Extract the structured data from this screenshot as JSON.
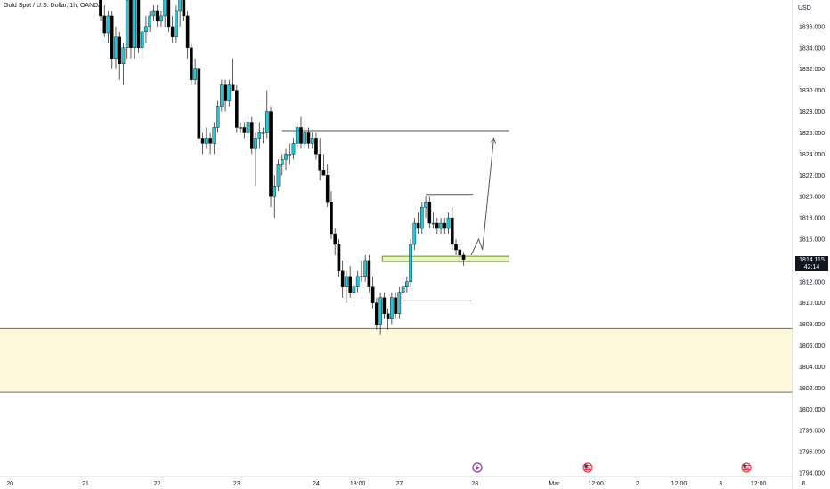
{
  "header": {
    "symbol": "Gold Spot / U.S. Dollar, 1h, OANDA"
  },
  "price_axis": {
    "currency": "USD",
    "last_price": "1814.115",
    "countdown": "42:14",
    "labels": [
      "1836.000",
      "1834.000",
      "1832.000",
      "1830.000",
      "1828.000",
      "1826.000",
      "1824.000",
      "1822.000",
      "1820.000",
      "1818.000",
      "1816.000",
      "1812.000",
      "1810.000",
      "1808.000",
      "1806.000",
      "1804.000",
      "1802.000",
      "1800.000",
      "1798.000",
      "1796.000",
      "1794.000"
    ]
  },
  "time_axis": {
    "labels": [
      "20",
      "21",
      "22",
      "23",
      "24",
      "13:00",
      "27",
      "28",
      "Mar",
      "12:00",
      "2",
      "12:00",
      "3",
      "12:00",
      "6"
    ]
  },
  "colors": {
    "up": "#26c6da",
    "down": "#000000",
    "zone_fill": "#fdf8dc",
    "zone_edge": "#6b6b6b",
    "small_zone": "#eef3c6",
    "small_zone_edge": "#6a8f2e"
  },
  "icons": [
    "lightning-event-icon",
    "us-flag-event-icon",
    "us-flag-event-icon"
  ],
  "chart_data": {
    "type": "candlestick",
    "title": "Gold Spot / U.S. Dollar, 1h, OANDA",
    "ylim": [
      1793.5,
      1838.5
    ],
    "yticks": [
      1794,
      1796,
      1798,
      1800,
      1802,
      1804,
      1806,
      1808,
      1810,
      1812,
      1814,
      1816,
      1818,
      1820,
      1822,
      1824,
      1826,
      1828,
      1830,
      1832,
      1834,
      1836
    ],
    "x_ticks": [
      {
        "label": "20",
        "bar": -24
      },
      {
        "label": "21",
        "bar": -4
      },
      {
        "label": "22",
        "bar": 15
      },
      {
        "label": "23",
        "bar": 36
      },
      {
        "label": "24",
        "bar": 57
      },
      {
        "label": "13:00",
        "bar": 68
      },
      {
        "label": "27",
        "bar": 79
      },
      {
        "label": "28",
        "bar": 99
      },
      {
        "label": "Mar",
        "bar": 120
      },
      {
        "label": "12:00",
        "bar": 131
      },
      {
        "label": "2",
        "bar": 142
      },
      {
        "label": "12:00",
        "bar": 153
      },
      {
        "label": "3",
        "bar": 164
      },
      {
        "label": "12:00",
        "bar": 174
      },
      {
        "label": "6",
        "bar": 186
      }
    ],
    "ohlc": [
      [
        1839.0,
        1840.0,
        1836.5,
        1837.0
      ],
      [
        1837.0,
        1838.0,
        1835.0,
        1835.4
      ],
      [
        1835.4,
        1837.5,
        1834.5,
        1837.0
      ],
      [
        1837.0,
        1837.5,
        1832.0,
        1833.0
      ],
      [
        1833.0,
        1836.0,
        1832.0,
        1835.0
      ],
      [
        1835.0,
        1835.5,
        1831.0,
        1832.5
      ],
      [
        1832.5,
        1834.5,
        1830.5,
        1834.0
      ],
      [
        1834.0,
        1839.0,
        1833.0,
        1838.5
      ],
      [
        1838.5,
        1839.0,
        1833.0,
        1834.0
      ],
      [
        1834.0,
        1839.5,
        1833.0,
        1839.0
      ],
      [
        1839.0,
        1840.0,
        1833.5,
        1834.0
      ],
      [
        1834.0,
        1836.0,
        1833.0,
        1835.5
      ],
      [
        1835.5,
        1837.0,
        1834.5,
        1836.0
      ],
      [
        1836.0,
        1837.5,
        1835.5,
        1837.0
      ],
      [
        1837.0,
        1838.0,
        1836.5,
        1837.5
      ],
      [
        1837.5,
        1838.0,
        1836.0,
        1836.5
      ],
      [
        1836.5,
        1837.5,
        1836.0,
        1837.0
      ],
      [
        1837.0,
        1840.0,
        1836.0,
        1839.5
      ],
      [
        1839.5,
        1840.0,
        1835.5,
        1836.0
      ],
      [
        1836.0,
        1837.0,
        1834.5,
        1835.0
      ],
      [
        1835.0,
        1838.0,
        1834.5,
        1837.5
      ],
      [
        1837.5,
        1840.0,
        1836.0,
        1839.5
      ],
      [
        1839.5,
        1840.0,
        1836.5,
        1837.0
      ],
      [
        1837.0,
        1837.5,
        1833.0,
        1834.0
      ],
      [
        1834.0,
        1834.5,
        1830.5,
        1831.0
      ],
      [
        1831.0,
        1833.0,
        1830.5,
        1832.0
      ],
      [
        1832.0,
        1832.5,
        1825.0,
        1825.5
      ],
      [
        1825.5,
        1826.0,
        1824.0,
        1825.0
      ],
      [
        1825.0,
        1826.5,
        1824.5,
        1825.5
      ],
      [
        1825.5,
        1826.0,
        1824.0,
        1825.0
      ],
      [
        1825.0,
        1827.0,
        1824.0,
        1826.5
      ],
      [
        1826.5,
        1829.0,
        1826.0,
        1828.5
      ],
      [
        1828.5,
        1831.0,
        1828.0,
        1830.5
      ],
      [
        1830.5,
        1831.0,
        1828.0,
        1829.0
      ],
      [
        1829.0,
        1831.0,
        1828.5,
        1830.5
      ],
      [
        1830.5,
        1833.0,
        1830.0,
        1830.0
      ],
      [
        1830.0,
        1830.5,
        1826.0,
        1826.5
      ],
      [
        1826.5,
        1827.0,
        1826.0,
        1826.5
      ],
      [
        1826.5,
        1827.0,
        1825.5,
        1826.0
      ],
      [
        1826.0,
        1827.5,
        1825.5,
        1827.0
      ],
      [
        1827.0,
        1827.5,
        1824.0,
        1824.5
      ],
      [
        1824.5,
        1826.0,
        1821.0,
        1825.5
      ],
      [
        1825.5,
        1827.0,
        1824.5,
        1826.0
      ],
      [
        1826.0,
        1826.5,
        1825.0,
        1826.0
      ],
      [
        1826.0,
        1830.0,
        1825.5,
        1828.0
      ],
      [
        1828.0,
        1828.5,
        1819.0,
        1820.0
      ],
      [
        1820.0,
        1822.0,
        1818.0,
        1821.0
      ],
      [
        1821.0,
        1823.5,
        1820.5,
        1823.0
      ],
      [
        1823.0,
        1824.0,
        1822.0,
        1823.5
      ],
      [
        1823.5,
        1824.5,
        1822.5,
        1824.0
      ],
      [
        1824.0,
        1825.0,
        1823.0,
        1824.0
      ],
      [
        1824.0,
        1825.5,
        1823.5,
        1825.0
      ],
      [
        1825.0,
        1827.0,
        1824.5,
        1826.5
      ],
      [
        1826.5,
        1827.5,
        1824.5,
        1825.0
      ],
      [
        1825.0,
        1826.5,
        1824.5,
        1826.0
      ],
      [
        1826.0,
        1826.5,
        1824.5,
        1825.0
      ],
      [
        1825.0,
        1826.0,
        1824.5,
        1825.5
      ],
      [
        1825.5,
        1826.0,
        1823.5,
        1824.0
      ],
      [
        1824.0,
        1825.5,
        1821.5,
        1822.5
      ],
      [
        1822.5,
        1824.0,
        1822.0,
        1822.0
      ],
      [
        1822.0,
        1823.0,
        1819.0,
        1819.5
      ],
      [
        1819.5,
        1820.5,
        1816.0,
        1816.5
      ],
      [
        1816.5,
        1817.0,
        1814.5,
        1815.5
      ],
      [
        1815.5,
        1816.0,
        1812.5,
        1813.0
      ],
      [
        1813.0,
        1814.0,
        1810.5,
        1811.5
      ],
      [
        1811.5,
        1813.0,
        1810.0,
        1812.5
      ],
      [
        1812.5,
        1813.5,
        1810.5,
        1811.0
      ],
      [
        1811.0,
        1812.5,
        1810.0,
        1811.5
      ],
      [
        1811.5,
        1813.0,
        1811.0,
        1812.5
      ],
      [
        1812.5,
        1814.0,
        1812.0,
        1812.5
      ],
      [
        1812.5,
        1814.5,
        1812.0,
        1814.0
      ],
      [
        1814.0,
        1814.5,
        1811.0,
        1811.5
      ],
      [
        1811.5,
        1812.5,
        1809.5,
        1810.0
      ],
      [
        1810.0,
        1810.5,
        1807.5,
        1808.0
      ],
      [
        1808.0,
        1811.0,
        1807.0,
        1810.5
      ],
      [
        1810.5,
        1811.0,
        1808.5,
        1809.0
      ],
      [
        1809.0,
        1809.5,
        1807.5,
        1808.5
      ],
      [
        1808.5,
        1811.0,
        1808.0,
        1810.5
      ],
      [
        1810.5,
        1811.0,
        1808.5,
        1809.0
      ],
      [
        1809.0,
        1811.5,
        1808.5,
        1811.0
      ],
      [
        1811.0,
        1812.0,
        1810.5,
        1811.5
      ],
      [
        1811.5,
        1812.5,
        1811.0,
        1812.0
      ],
      [
        1812.0,
        1816.0,
        1811.5,
        1815.5
      ],
      [
        1815.5,
        1818.0,
        1815.0,
        1817.5
      ],
      [
        1817.5,
        1818.5,
        1816.5,
        1817.0
      ],
      [
        1817.0,
        1819.5,
        1816.5,
        1819.0
      ],
      [
        1819.0,
        1820.0,
        1818.0,
        1819.5
      ],
      [
        1819.5,
        1820.0,
        1817.0,
        1817.5
      ],
      [
        1817.5,
        1818.5,
        1817.0,
        1817.5
      ],
      [
        1817.5,
        1818.0,
        1816.5,
        1817.0
      ],
      [
        1817.0,
        1818.0,
        1816.5,
        1817.5
      ],
      [
        1817.5,
        1818.0,
        1816.5,
        1817.0
      ],
      [
        1817.0,
        1818.5,
        1816.5,
        1818.0
      ],
      [
        1818.0,
        1819.0,
        1815.0,
        1815.5
      ],
      [
        1815.5,
        1816.0,
        1814.5,
        1815.0
      ],
      [
        1815.0,
        1815.5,
        1814.0,
        1814.5
      ],
      [
        1814.5,
        1814.8,
        1813.5,
        1814.1
      ]
    ],
    "horizontal_levels": [
      1826.2,
      1820.2,
      1810.2
    ],
    "zone": {
      "top": 1807.6,
      "bottom": 1801.6
    },
    "small_zone": {
      "top": 1814.4,
      "bottom": 1813.9
    },
    "projection_path": [
      [
        98,
        1814.5
      ],
      [
        100,
        1816.0
      ],
      [
        101,
        1815.0
      ],
      [
        104,
        1825.5
      ]
    ]
  }
}
